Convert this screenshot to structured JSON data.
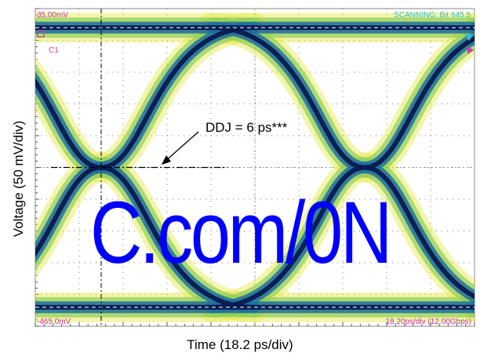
{
  "readouts": {
    "top_left": "35.00mV",
    "bottom_left": "-465.0mV",
    "top_right": "SCANNING: Bit 645.5",
    "bottom_right": "18.20ps/div (12.00Gbps)",
    "marker_label": "C1"
  },
  "colors": {
    "readout_magenta": "#c0399a",
    "readout_cyan": "#36b8c6",
    "marker_magenta": "#d23aa0",
    "eye_dense": "#0a1a50",
    "eye_mid": "#1f6fa0",
    "eye_light": "#8ecf5a",
    "eye_sparse": "#e6e84a",
    "watermark": "#0000ff"
  },
  "annotation": "DDJ = 6 ps***",
  "watermark": "C.com/0N",
  "chart_data": {
    "type": "eye-diagram",
    "xlabel": "Time (18.2 ps/div)",
    "ylabel": "Voltage (50 mV/div)",
    "x_per_div_ps": 18.2,
    "y_per_div_mV": 50,
    "x_divisions": 10,
    "y_divisions": 10,
    "ylim_mV": [
      -465.0,
      35.0
    ],
    "bit_rate_Gbps": 12.0,
    "levels_mV": {
      "high": 5.0,
      "low": -435.0
    },
    "crossings_ps": [
      27.3,
      136.5
    ],
    "annotation": {
      "text": "DDJ = 6 ps***",
      "ddj_ps": 6
    },
    "grid": true
  }
}
